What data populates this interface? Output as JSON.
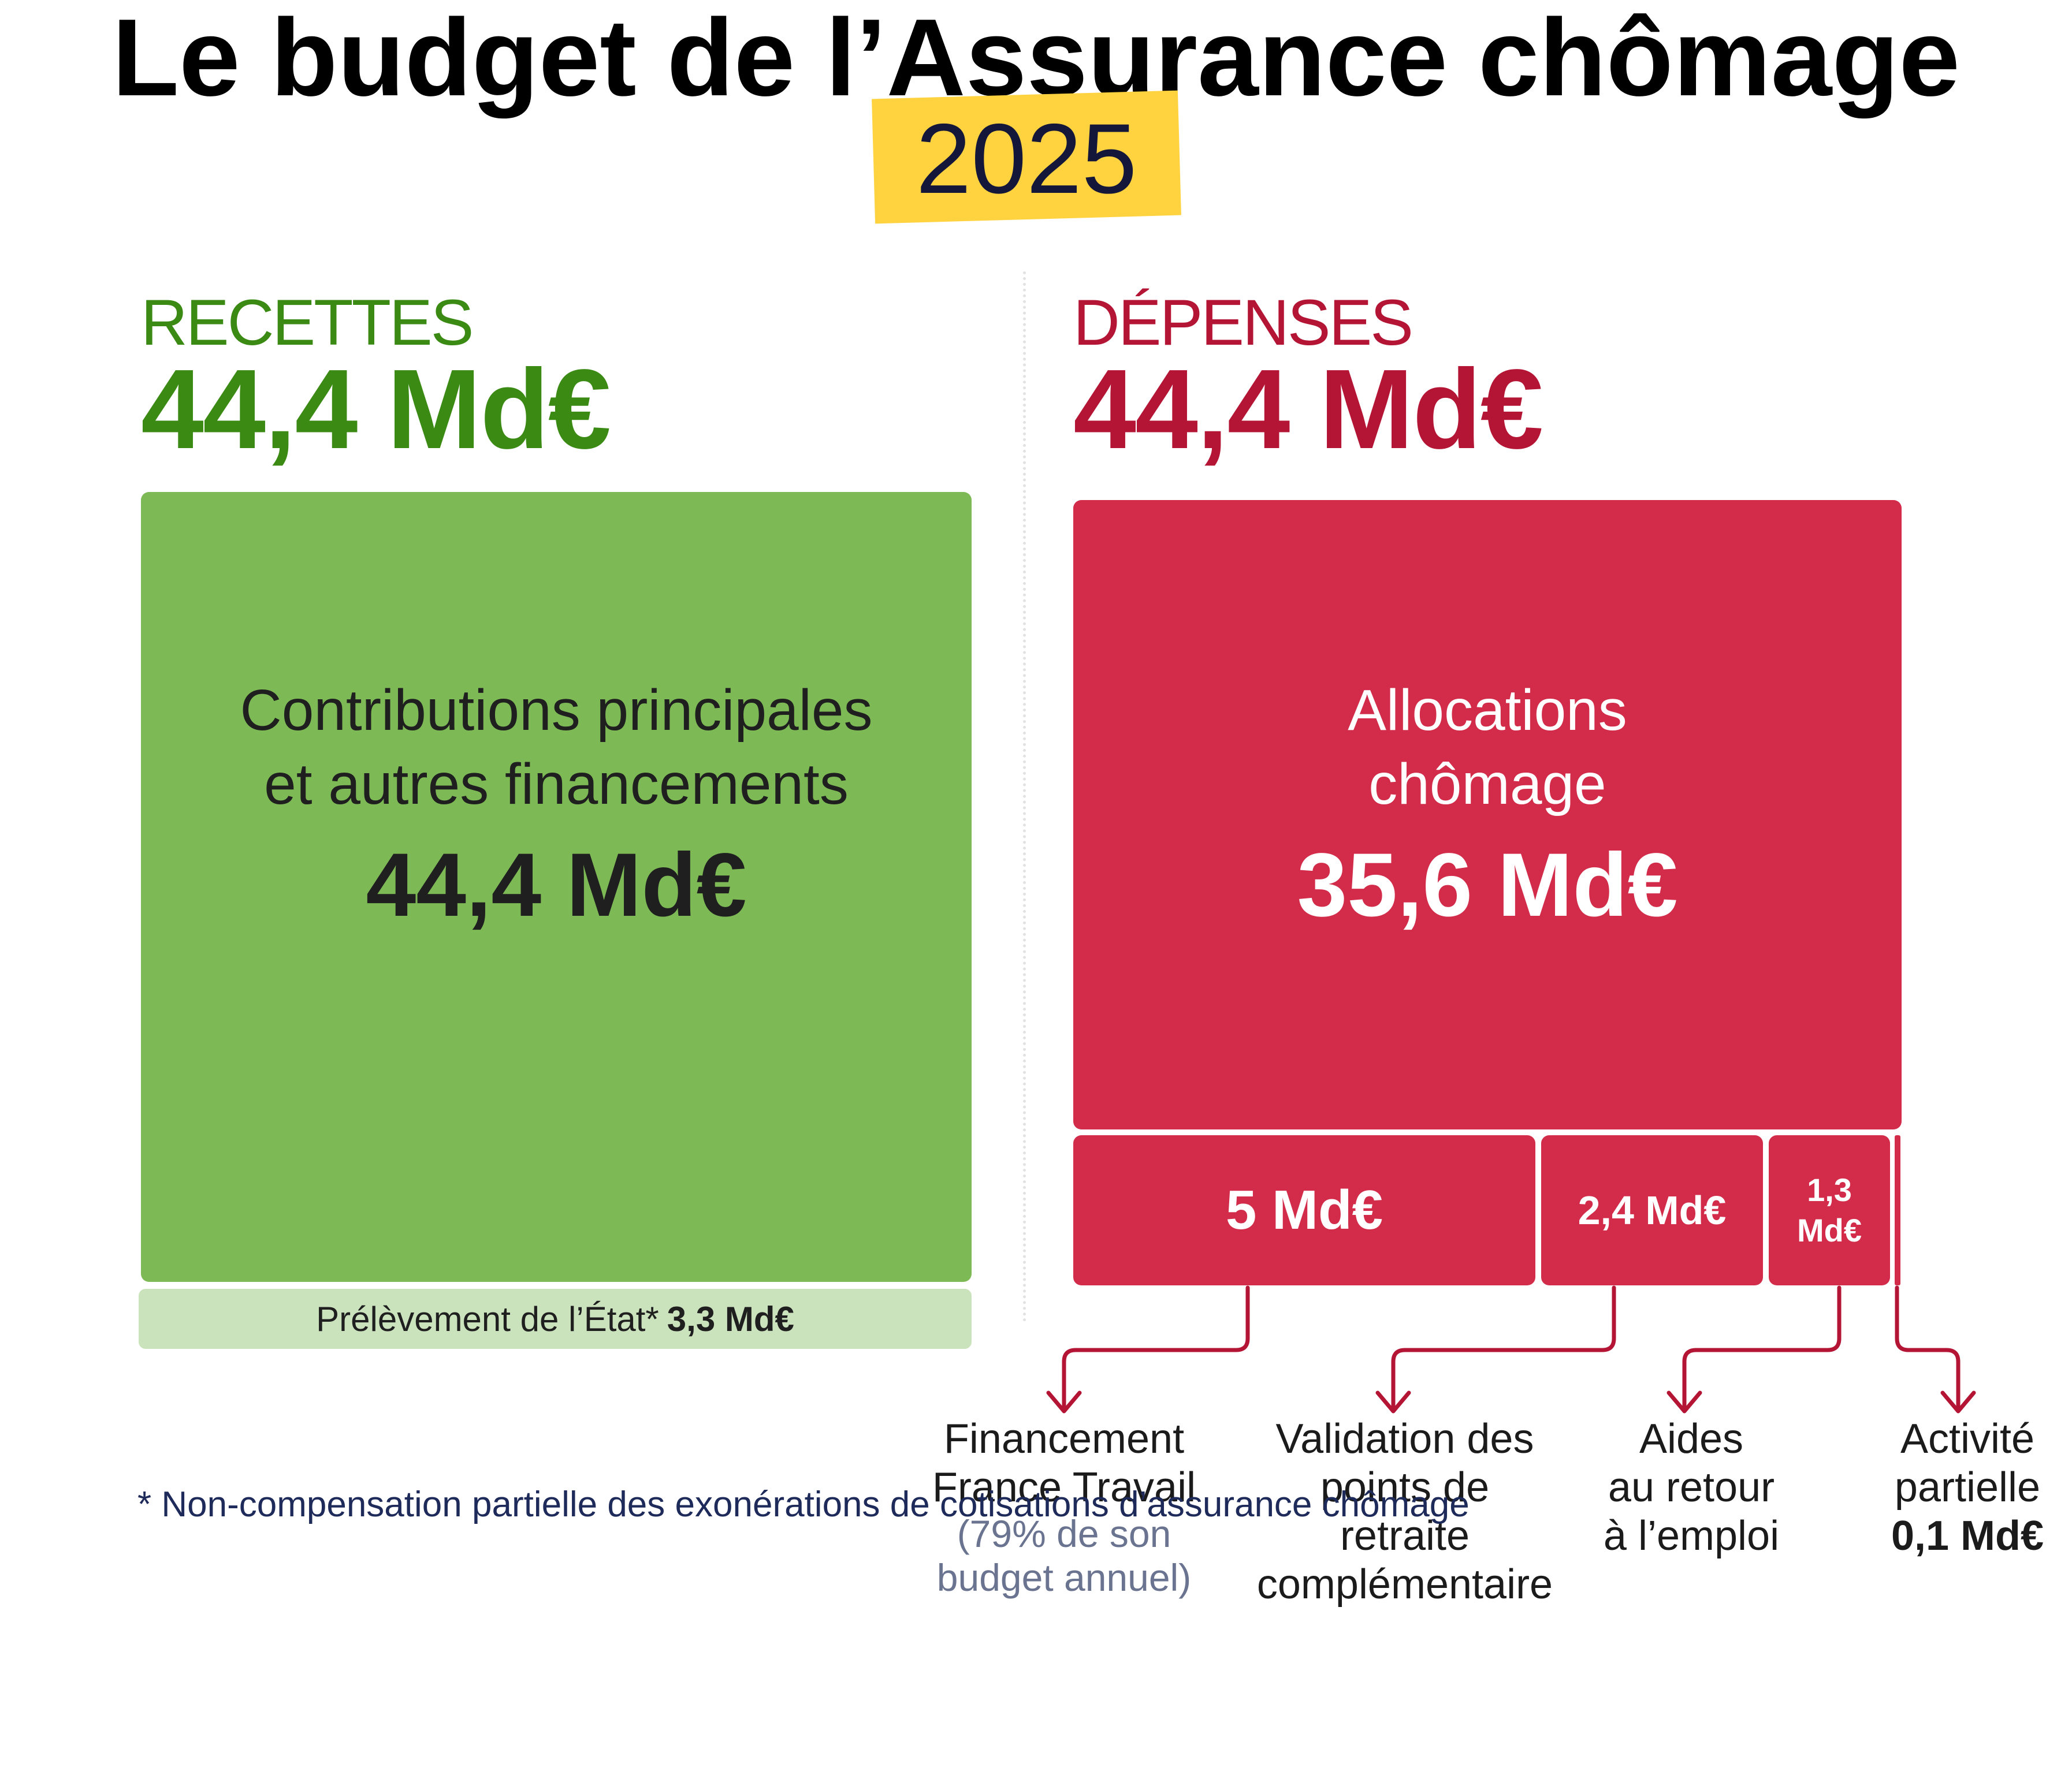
{
  "title": "Le budget de l’Assurance chômage",
  "year": "2025",
  "recettes": {
    "label": "RECETTES",
    "total": "44,4 Md€",
    "main_name_line1": "Contributions principales",
    "main_name_line2": "et autres financements",
    "main_value": "44,4 Md€",
    "deduction_label": "Prélèvement de l’État*",
    "deduction_value": "3,3 Md€"
  },
  "depenses": {
    "label": "DÉPENSES",
    "total": "44,4 Md€",
    "main_name_line1": "Allocations",
    "main_name_line2": "chômage",
    "main_value": "35,6 Md€",
    "items": [
      {
        "value": "5 Md€",
        "line1": "Financement",
        "line2": "France Travail",
        "note1": "(79% de son",
        "note2": "budget annuel)"
      },
      {
        "value": "2,4 Md€",
        "line1": "Validation des",
        "line2": "points de",
        "line3": "retraite",
        "line4": "complémentaire"
      },
      {
        "value_line1": "1,3",
        "value_line2": "Md€",
        "line1": "Aides",
        "line2": "au retour",
        "line3": "à l’emploi"
      },
      {
        "line1": "Activité",
        "line2": "partielle",
        "value": "0,1 Md€"
      }
    ]
  },
  "footnote": "* Non-compensation partielle des exonérations de cotisations d’assurance chômage",
  "colors": {
    "recettes_dark": "#3a8a14",
    "recettes_box": "#7db955",
    "recettes_light": "#cbe3bd",
    "depenses_dark": "#b51535",
    "depenses_box": "#d22c4a",
    "year_highlight": "#ffd23f"
  },
  "chart_data": {
    "type": "treemap",
    "unit": "Md€",
    "recettes": [
      {
        "name": "Contributions principales et autres financements",
        "value": 44.4
      },
      {
        "name": "Prélèvement de l’État*",
        "value": -3.3
      }
    ],
    "depenses": [
      {
        "name": "Allocations chômage",
        "value": 35.6
      },
      {
        "name": "Financement France Travail",
        "value": 5.0
      },
      {
        "name": "Validation des points de retraite complémentaire",
        "value": 2.4
      },
      {
        "name": "Aides au retour à l’emploi",
        "value": 1.3
      },
      {
        "name": "Activité partielle",
        "value": 0.1
      }
    ]
  }
}
